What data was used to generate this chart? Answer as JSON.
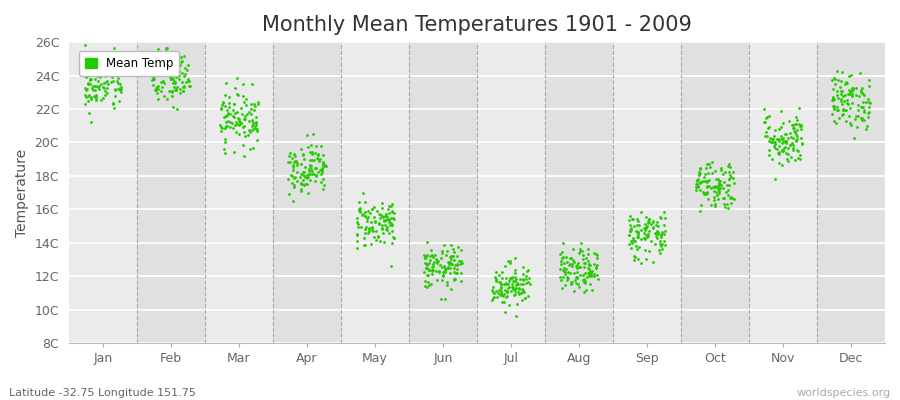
{
  "title": "Monthly Mean Temperatures 1901 - 2009",
  "ylabel": "Temperature",
  "xlabel_labels": [
    "Jan",
    "Feb",
    "Mar",
    "Apr",
    "May",
    "Jun",
    "Jul",
    "Aug",
    "Sep",
    "Oct",
    "Nov",
    "Dec"
  ],
  "ytick_labels": [
    "8C",
    "10C",
    "12C",
    "14C",
    "16C",
    "18C",
    "20C",
    "22C",
    "24C",
    "26C"
  ],
  "ytick_values": [
    8,
    10,
    12,
    14,
    16,
    18,
    20,
    22,
    24,
    26
  ],
  "ylim": [
    8,
    26
  ],
  "legend_label": "Mean Temp",
  "dot_color": "#22cc00",
  "dot_size": 4,
  "background_color": "#ffffff",
  "plot_bg_color": "#ebebeb",
  "plot_bg_color_alt": "#e0e0e0",
  "grid_color": "#ffffff",
  "dashed_line_color": "#999999",
  "subtitle": "Latitude -32.75 Longitude 151.75",
  "watermark": "worldspecies.org",
  "title_fontsize": 15,
  "axis_label_fontsize": 10,
  "tick_fontsize": 9,
  "n_years": 109,
  "monthly_means": [
    23.5,
    23.8,
    21.5,
    18.5,
    15.2,
    12.5,
    11.5,
    12.3,
    14.5,
    17.5,
    20.2,
    22.5
  ],
  "monthly_stds": [
    0.85,
    0.85,
    0.85,
    0.75,
    0.75,
    0.65,
    0.65,
    0.65,
    0.75,
    0.75,
    0.85,
    0.85
  ],
  "seed": 42
}
